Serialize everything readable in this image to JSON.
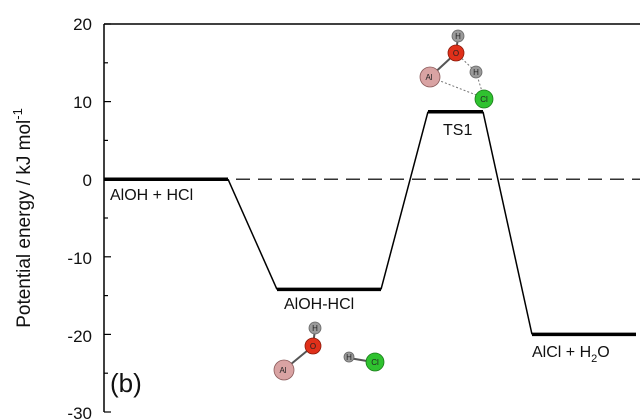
{
  "chart_data": {
    "type": "line",
    "title": "",
    "panel_label": "(b)",
    "ylabel": "Potential energy / kJ mol",
    "ylabel_superscript": "-1",
    "ylim": [
      -30,
      20
    ],
    "yticks": [
      "20",
      "10",
      "0",
      "-10",
      "-20",
      "-30"
    ],
    "reference_line": {
      "y": 0,
      "style": "dashed"
    },
    "states": [
      {
        "label": "AlOH + HCl",
        "energy": 0.0
      },
      {
        "label": "AlOH-HCl",
        "energy": -14.2
      },
      {
        "label": "TS1",
        "energy": 8.7
      },
      {
        "label": "AlCl + H",
        "label_sub": "2",
        "label_tail": "O",
        "energy": -20.0
      }
    ],
    "atom_labels": {
      "hydrogen": "H",
      "oxygen": "O",
      "aluminium": "Al",
      "chlorine": "Cl"
    },
    "colors": {
      "line": "#000000",
      "hydrogen": "#9a9a9a",
      "oxygen": "#e0301a",
      "aluminium": "#d9a3a3",
      "chlorine": "#2fc22f"
    }
  }
}
